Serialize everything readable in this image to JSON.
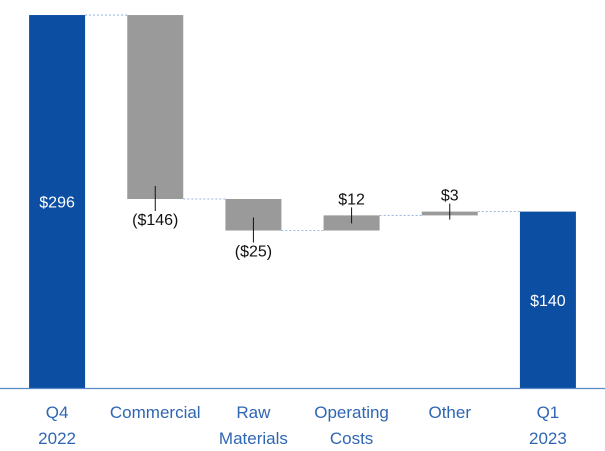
{
  "chart_data": {
    "type": "waterfall",
    "title": "",
    "xlabel": "",
    "ylabel": "",
    "ylim": [
      0,
      300
    ],
    "grid": false,
    "legend": "none",
    "categories": [
      [
        "Q4",
        "2022"
      ],
      [
        "Commercial"
      ],
      [
        "Raw",
        "Materials"
      ],
      [
        "Operating",
        "Costs"
      ],
      [
        "Other"
      ],
      [
        "Q1",
        "2023"
      ]
    ],
    "values": [
      296,
      -146,
      -25,
      12,
      3,
      140
    ],
    "labels": [
      "$296",
      "($146)",
      "($25)",
      "$12",
      "$3",
      "$140"
    ],
    "kinds": [
      "total",
      "delta",
      "delta",
      "delta",
      "delta",
      "total"
    ],
    "colors": {
      "total": "#0b4ea2",
      "delta": "#9a9a9a",
      "axis": "#5a89c5",
      "connector": "#7aa2d6",
      "category_text": "#2f66b3"
    }
  }
}
